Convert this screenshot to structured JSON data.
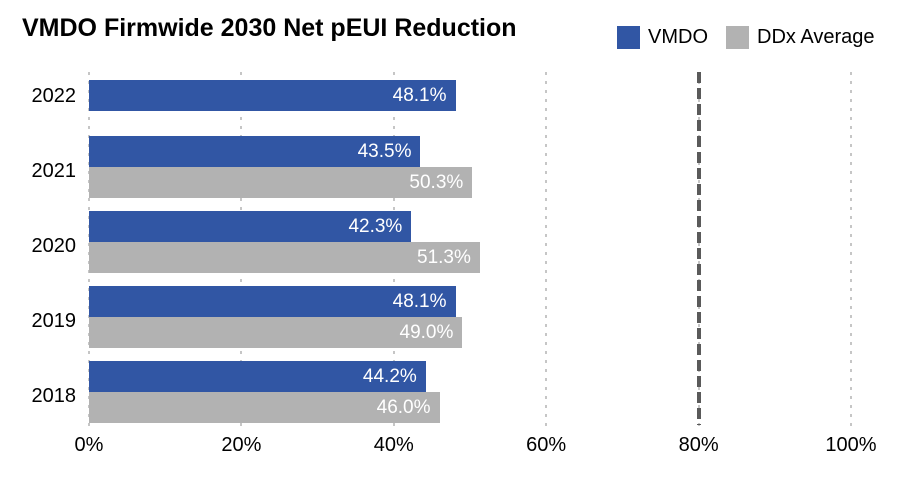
{
  "chart_data": {
    "type": "bar",
    "orientation": "horizontal",
    "title": "VMDO Firmwide 2030 Net pEUI Reduction",
    "categories": [
      "2022",
      "2021",
      "2020",
      "2019",
      "2018"
    ],
    "series": [
      {
        "name": "VMDO",
        "color": "#3156a4",
        "values": [
          48.1,
          43.5,
          42.3,
          48.1,
          44.2
        ],
        "labels": [
          "48.1%",
          "43.5%",
          "42.3%",
          "48.1%",
          "44.2%"
        ]
      },
      {
        "name": "DDx Average",
        "color": "#b2b2b2",
        "values": [
          null,
          50.3,
          51.3,
          49.0,
          46.0
        ],
        "labels": [
          null,
          "50.3%",
          "51.3%",
          "49.0%",
          "46.0%"
        ]
      }
    ],
    "xlabel": "",
    "ylabel": "",
    "xlim": [
      0,
      100
    ],
    "x_ticks": [
      {
        "label": "0%",
        "value": 0
      },
      {
        "label": "20%",
        "value": 20
      },
      {
        "label": "40%",
        "value": 40
      },
      {
        "label": "60%",
        "value": 60
      },
      {
        "label": "80%",
        "value": 80
      },
      {
        "label": "100%",
        "value": 100
      }
    ],
    "reference_line": {
      "value": 80,
      "style": "dashed",
      "color": "#5a5a5a"
    },
    "grid": "dotted-vertical",
    "legend_position": "top-right",
    "bar_label_color": "#ffffff"
  }
}
